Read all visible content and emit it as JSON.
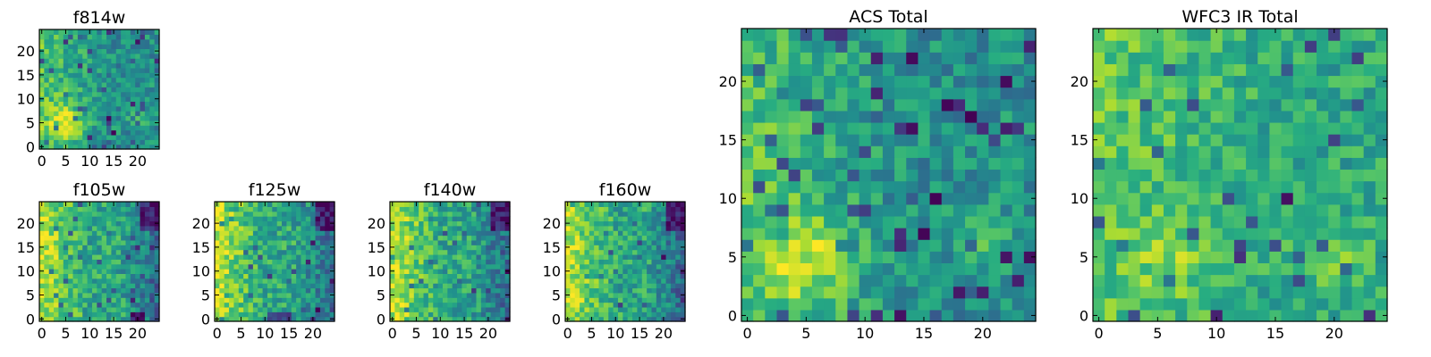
{
  "colormap": "viridis",
  "chart_data": [
    {
      "type": "heatmap",
      "id": "f814w",
      "title": "f814w",
      "grid": [
        25,
        25
      ],
      "x_ticks": [
        0,
        5,
        10,
        15,
        20
      ],
      "y_ticks": [
        0,
        5,
        10,
        15,
        20
      ],
      "xlim": [
        0,
        24
      ],
      "ylim": [
        0,
        24
      ],
      "seed": 11,
      "profile": "acs"
    },
    {
      "type": "heatmap",
      "id": "f105w",
      "title": "f105w",
      "grid": [
        25,
        25
      ],
      "x_ticks": [
        0,
        5,
        10,
        15,
        20
      ],
      "y_ticks": [
        0,
        5,
        10,
        15,
        20
      ],
      "xlim": [
        0,
        24
      ],
      "ylim": [
        0,
        24
      ],
      "seed": 23,
      "profile": "f105"
    },
    {
      "type": "heatmap",
      "id": "f125w",
      "title": "f125w",
      "grid": [
        25,
        25
      ],
      "x_ticks": [
        0,
        5,
        10,
        15,
        20
      ],
      "y_ticks": [
        0,
        5,
        10,
        15,
        20
      ],
      "xlim": [
        0,
        24
      ],
      "ylim": [
        0,
        24
      ],
      "seed": 37,
      "profile": "f125"
    },
    {
      "type": "heatmap",
      "id": "f140w",
      "title": "f140w",
      "grid": [
        25,
        25
      ],
      "x_ticks": [
        0,
        5,
        10,
        15,
        20
      ],
      "y_ticks": [
        0,
        5,
        10,
        15,
        20
      ],
      "xlim": [
        0,
        24
      ],
      "ylim": [
        0,
        24
      ],
      "seed": 41,
      "profile": "f140"
    },
    {
      "type": "heatmap",
      "id": "f160w",
      "title": "f160w",
      "grid": [
        25,
        25
      ],
      "x_ticks": [
        0,
        5,
        10,
        15,
        20
      ],
      "y_ticks": [
        0,
        5,
        10,
        15,
        20
      ],
      "xlim": [
        0,
        24
      ],
      "ylim": [
        0,
        24
      ],
      "seed": 53,
      "profile": "f160"
    },
    {
      "type": "heatmap",
      "id": "acs-total",
      "title": "ACS Total",
      "grid": [
        25,
        25
      ],
      "x_ticks": [
        0,
        5,
        10,
        15,
        20
      ],
      "y_ticks": [
        0,
        5,
        10,
        15,
        20
      ],
      "xlim": [
        0,
        24
      ],
      "ylim": [
        0,
        24
      ],
      "seed": 67,
      "profile": "acs"
    },
    {
      "type": "heatmap",
      "id": "wfc3-ir-total",
      "title": "WFC3 IR Total",
      "grid": [
        25,
        25
      ],
      "x_ticks": [
        0,
        5,
        10,
        15,
        20
      ],
      "y_ticks": [
        0,
        5,
        10,
        15,
        20
      ],
      "xlim": [
        0,
        24
      ],
      "ylim": [
        0,
        24
      ],
      "seed": 79,
      "profile": "wfc3"
    }
  ]
}
